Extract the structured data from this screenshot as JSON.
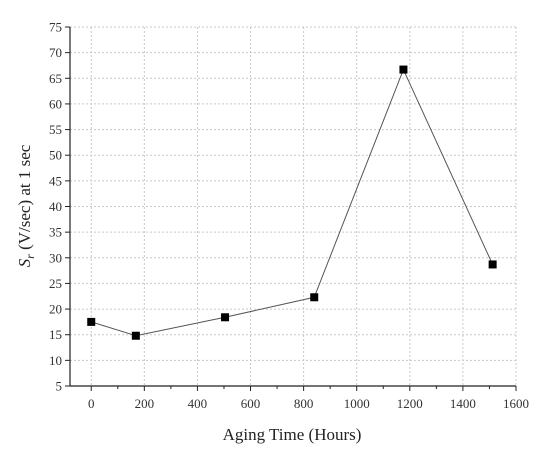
{
  "chart_data": {
    "type": "line",
    "title": "",
    "xlabel": "Aging Time (Hours)",
    "ylabel_main": "S",
    "ylabel_sub": "r",
    "ylabel_rest": " (V/sec) at 1 sec",
    "xlim": [
      -80,
      1600
    ],
    "ylim": [
      5,
      75
    ],
    "xticks": [
      0,
      200,
      400,
      600,
      800,
      1000,
      1200,
      1400,
      1600
    ],
    "yticks": [
      5,
      10,
      15,
      20,
      25,
      30,
      35,
      40,
      45,
      50,
      55,
      60,
      65,
      70,
      75
    ],
    "grid": true,
    "line_color": "#555555",
    "marker_color": "#000000",
    "marker": "square",
    "series": [
      {
        "x": [
          0,
          168,
          504,
          840,
          1176,
          1512
        ],
        "y": [
          17.5,
          14.8,
          18.4,
          22.3,
          66.7,
          28.7
        ]
      }
    ]
  }
}
